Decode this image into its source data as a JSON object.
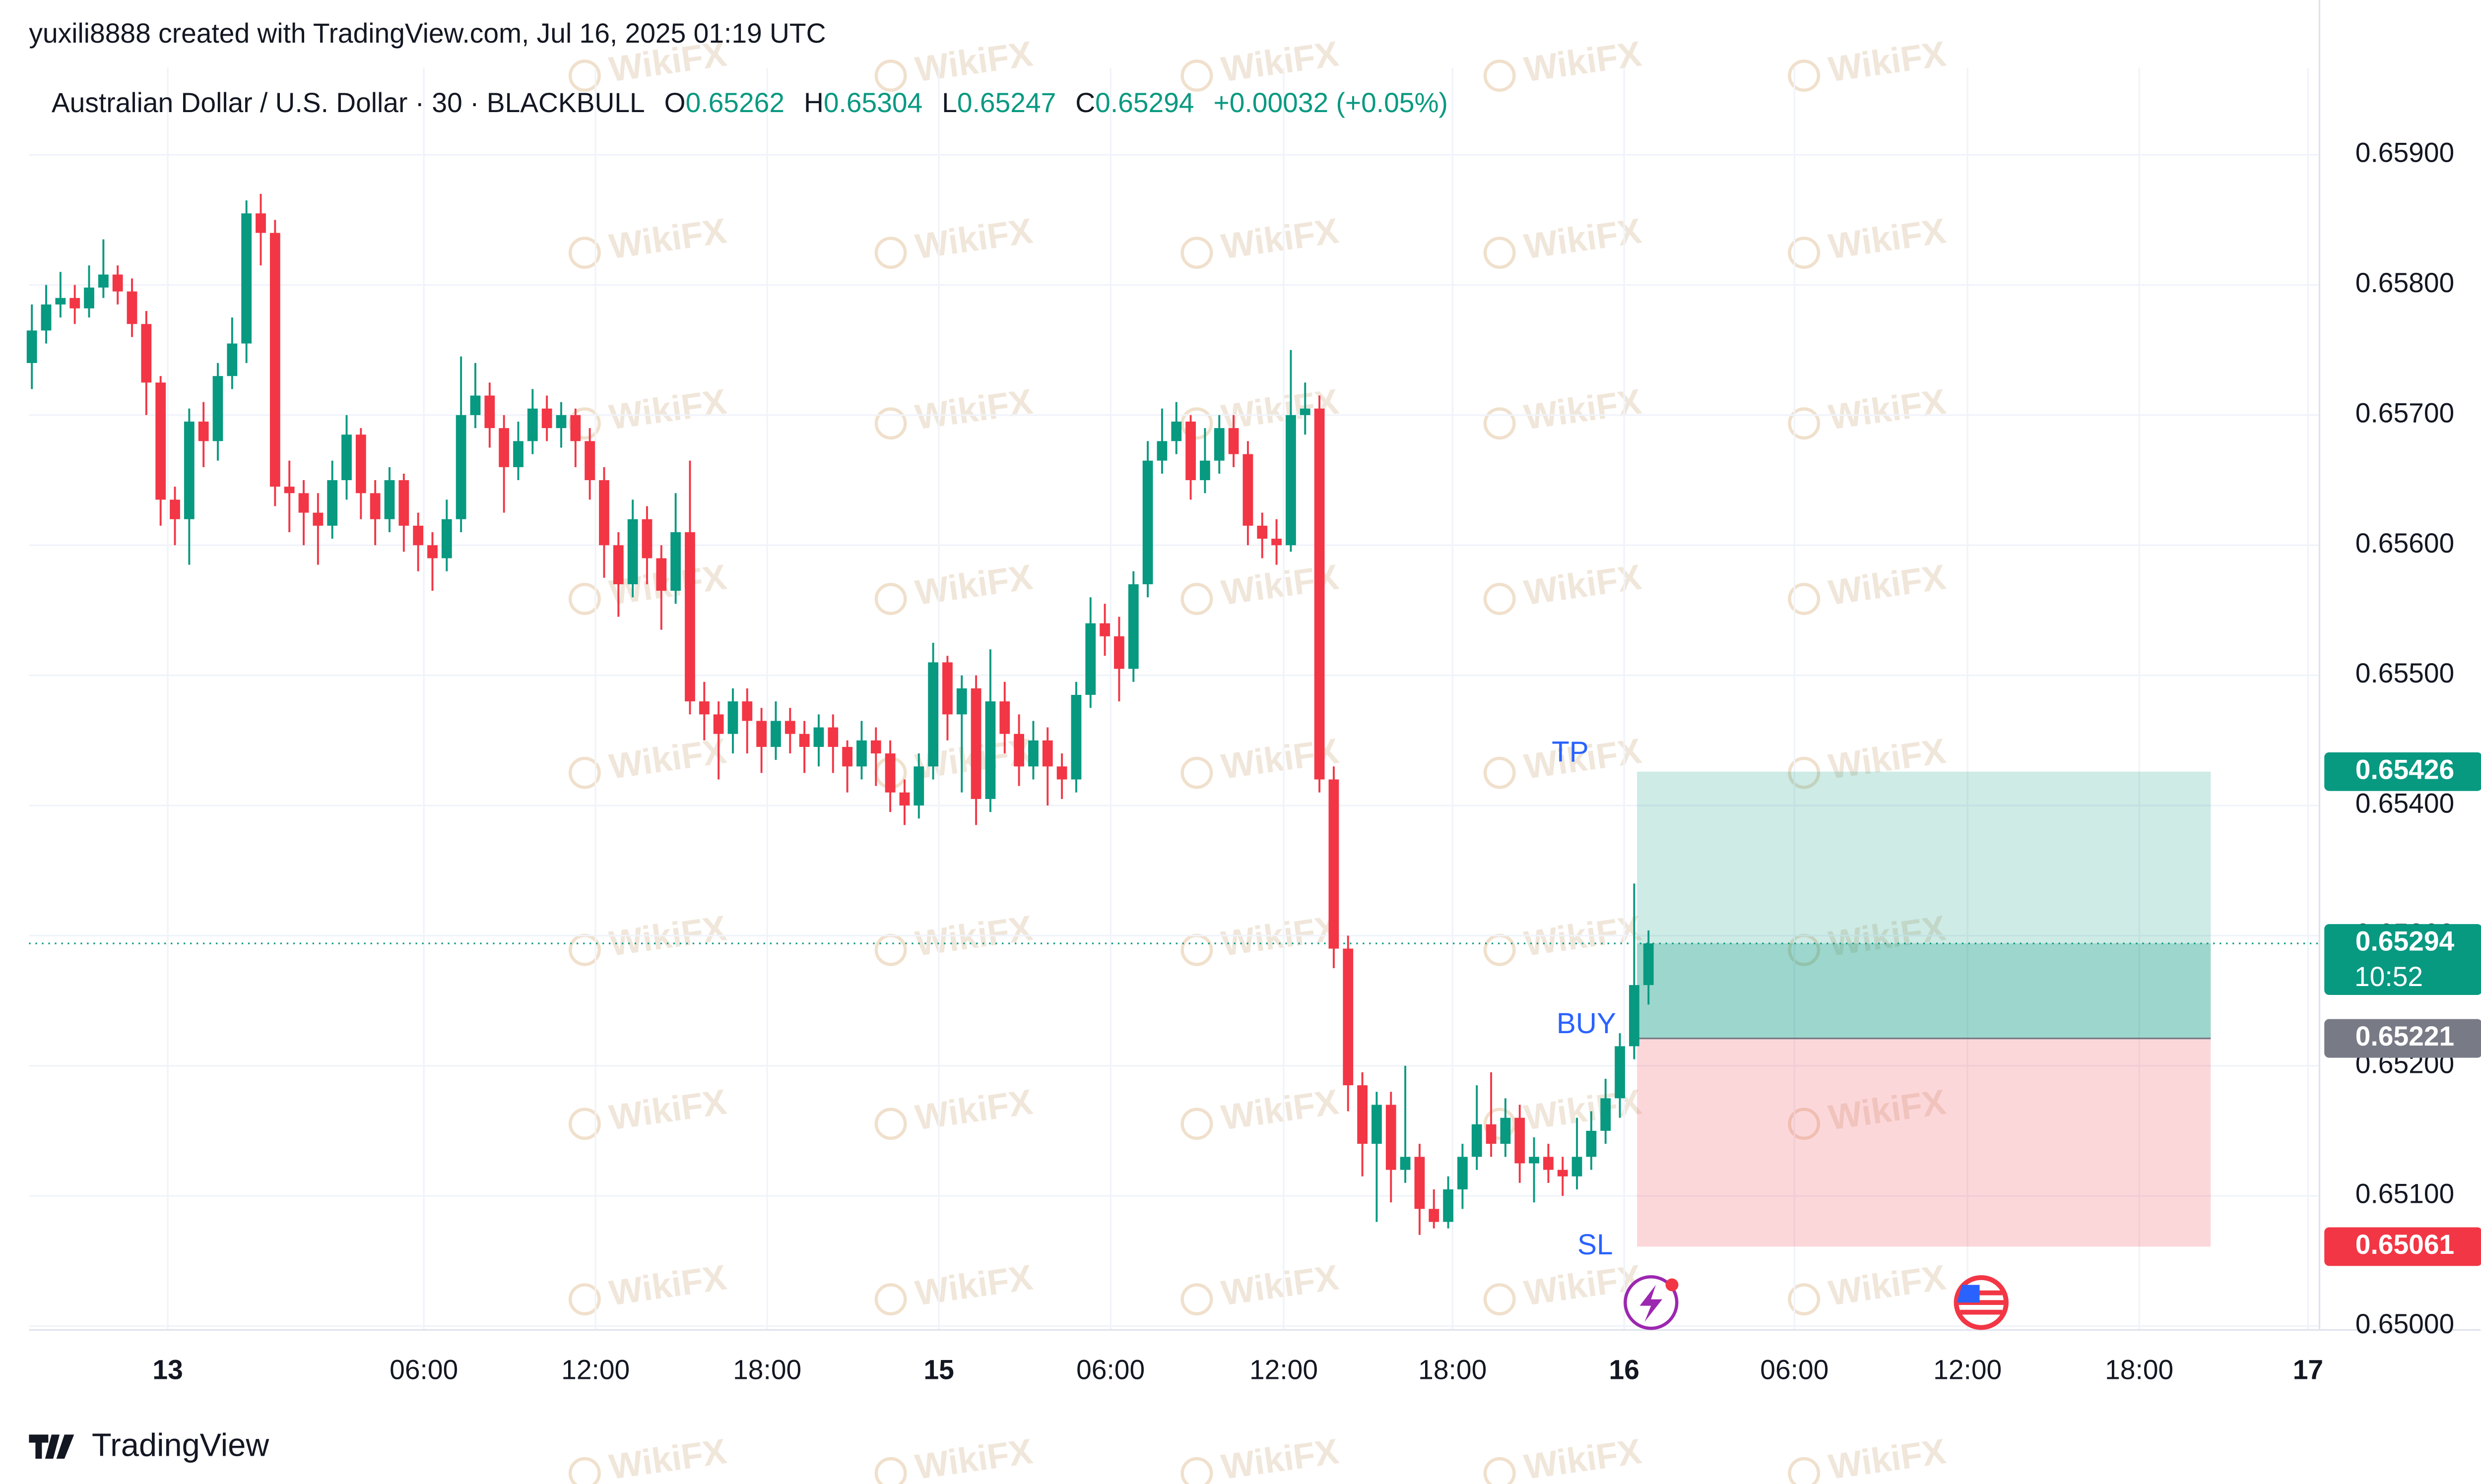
{
  "header": {
    "attribution": "yuxili8888 created with TradingView.com, Jul 16, 2025 01:19 UTC",
    "footer_brand": "TradingView",
    "watermark": "WikiFX"
  },
  "chart_data": {
    "type": "candlestick",
    "title": "Australian Dollar / U.S. Dollar · 30 · BLACKBULL",
    "legend_letters": [
      "O",
      "H",
      "L",
      "C"
    ],
    "legend_values": [
      0.65262,
      0.65304,
      0.65247,
      0.65294
    ],
    "change": "+0.00032 (+0.05%)",
    "up_color": "#089981",
    "down_color": "#f23645",
    "grid": true,
    "open": [
      0.6574,
      0.65765,
      0.65785,
      0.6579,
      0.65782,
      0.65798,
      0.65808,
      0.65795,
      0.6577,
      0.65725,
      0.65635,
      0.6562,
      0.65695,
      0.6568,
      0.6573,
      0.65755,
      0.65855,
      0.6584,
      0.65645,
      0.6564,
      0.65625,
      0.65615,
      0.6565,
      0.65685,
      0.6564,
      0.6562,
      0.6565,
      0.65615,
      0.656,
      0.6559,
      0.6562,
      0.657,
      0.65715,
      0.6569,
      0.6566,
      0.6568,
      0.65705,
      0.6569,
      0.657,
      0.6568,
      0.6565,
      0.656,
      0.6557,
      0.6562,
      0.6559,
      0.65565,
      0.6561,
      0.6548,
      0.6547,
      0.65455,
      0.6548,
      0.65465,
      0.65445,
      0.65465,
      0.65455,
      0.65445,
      0.6546,
      0.65445,
      0.6543,
      0.6545,
      0.6544,
      0.6541,
      0.654,
      0.6543,
      0.6551,
      0.6547,
      0.6549,
      0.65405,
      0.6548,
      0.65455,
      0.6543,
      0.6545,
      0.6543,
      0.6542,
      0.65485,
      0.6554,
      0.6553,
      0.65505,
      0.6557,
      0.65665,
      0.6568,
      0.65695,
      0.6565,
      0.65665,
      0.6569,
      0.6567,
      0.65615,
      0.65605,
      0.656,
      0.657,
      0.65705,
      0.6542,
      0.6529,
      0.65185,
      0.6514,
      0.6517,
      0.6512,
      0.6513,
      0.6509,
      0.6508,
      0.65105,
      0.6513,
      0.65155,
      0.6514,
      0.6516,
      0.65125,
      0.6513,
      0.6512,
      0.65115,
      0.6513,
      0.6515,
      0.65175,
      0.65215,
      0.65262
    ],
    "high": [
      0.65785,
      0.658,
      0.6581,
      0.658,
      0.65815,
      0.65835,
      0.65815,
      0.65805,
      0.6578,
      0.6573,
      0.65645,
      0.65705,
      0.6571,
      0.6574,
      0.65775,
      0.65865,
      0.6587,
      0.6585,
      0.65665,
      0.6565,
      0.6564,
      0.65665,
      0.657,
      0.6569,
      0.6565,
      0.6566,
      0.65655,
      0.65625,
      0.6561,
      0.65635,
      0.65745,
      0.6574,
      0.65725,
      0.657,
      0.65695,
      0.6572,
      0.65715,
      0.6571,
      0.65705,
      0.6569,
      0.6566,
      0.6561,
      0.65635,
      0.6563,
      0.656,
      0.6564,
      0.65665,
      0.65495,
      0.6548,
      0.6549,
      0.6549,
      0.65475,
      0.6548,
      0.65475,
      0.65465,
      0.6547,
      0.6547,
      0.6545,
      0.65465,
      0.6546,
      0.6545,
      0.6542,
      0.6544,
      0.65525,
      0.65515,
      0.655,
      0.655,
      0.6552,
      0.65495,
      0.6547,
      0.65465,
      0.6546,
      0.6544,
      0.65495,
      0.6556,
      0.65555,
      0.65545,
      0.6558,
      0.6568,
      0.65705,
      0.6571,
      0.657,
      0.6569,
      0.657,
      0.657,
      0.6568,
      0.65625,
      0.6562,
      0.6575,
      0.65725,
      0.65715,
      0.6543,
      0.653,
      0.65195,
      0.6518,
      0.6518,
      0.652,
      0.6514,
      0.65105,
      0.65115,
      0.6514,
      0.65185,
      0.65195,
      0.65175,
      0.6517,
      0.65145,
      0.6514,
      0.6513,
      0.6516,
      0.65165,
      0.6519,
      0.65225,
      0.6534,
      0.65304
    ],
    "low": [
      0.6572,
      0.65755,
      0.65775,
      0.6577,
      0.65775,
      0.6579,
      0.65785,
      0.6576,
      0.657,
      0.65615,
      0.656,
      0.65585,
      0.6566,
      0.65665,
      0.6572,
      0.6574,
      0.65815,
      0.6563,
      0.6561,
      0.656,
      0.65585,
      0.65605,
      0.65635,
      0.6562,
      0.656,
      0.6561,
      0.65595,
      0.6558,
      0.65565,
      0.6558,
      0.6561,
      0.6569,
      0.65675,
      0.65625,
      0.6565,
      0.6567,
      0.6568,
      0.65675,
      0.6566,
      0.65635,
      0.65575,
      0.65545,
      0.6556,
      0.6557,
      0.65535,
      0.65555,
      0.6547,
      0.6545,
      0.6542,
      0.6544,
      0.6544,
      0.65425,
      0.65435,
      0.6544,
      0.65425,
      0.6543,
      0.65425,
      0.6541,
      0.6542,
      0.65415,
      0.65395,
      0.65385,
      0.6539,
      0.6542,
      0.6545,
      0.6541,
      0.65385,
      0.65395,
      0.6544,
      0.65415,
      0.6542,
      0.654,
      0.65405,
      0.6541,
      0.65475,
      0.65515,
      0.6548,
      0.65495,
      0.6556,
      0.65655,
      0.6567,
      0.65635,
      0.6564,
      0.65655,
      0.6566,
      0.656,
      0.6559,
      0.65585,
      0.65595,
      0.65685,
      0.6541,
      0.65275,
      0.65165,
      0.65115,
      0.6508,
      0.65095,
      0.6511,
      0.6507,
      0.65075,
      0.65075,
      0.6509,
      0.6512,
      0.6513,
      0.6513,
      0.6511,
      0.65095,
      0.6511,
      0.651,
      0.65105,
      0.6512,
      0.6514,
      0.6516,
      0.65205,
      0.65247
    ],
    "close": [
      0.65765,
      0.65785,
      0.6579,
      0.65782,
      0.65798,
      0.65808,
      0.65795,
      0.6577,
      0.65725,
      0.65635,
      0.6562,
      0.65695,
      0.6568,
      0.6573,
      0.65755,
      0.65855,
      0.6584,
      0.65645,
      0.6564,
      0.65625,
      0.65615,
      0.6565,
      0.65685,
      0.6564,
      0.6562,
      0.6565,
      0.65615,
      0.656,
      0.6559,
      0.6562,
      0.657,
      0.65715,
      0.6569,
      0.6566,
      0.6568,
      0.65705,
      0.6569,
      0.657,
      0.6568,
      0.6565,
      0.656,
      0.6557,
      0.6562,
      0.6559,
      0.65565,
      0.6561,
      0.6548,
      0.6547,
      0.65455,
      0.6548,
      0.65465,
      0.65445,
      0.65465,
      0.65455,
      0.65445,
      0.6546,
      0.65445,
      0.6543,
      0.6545,
      0.6544,
      0.6541,
      0.654,
      0.6543,
      0.6551,
      0.6547,
      0.6549,
      0.65405,
      0.6548,
      0.65455,
      0.6543,
      0.6545,
      0.6543,
      0.6542,
      0.65485,
      0.6554,
      0.6553,
      0.65505,
      0.6557,
      0.65665,
      0.6568,
      0.65695,
      0.6565,
      0.65665,
      0.6569,
      0.6567,
      0.65615,
      0.65605,
      0.656,
      0.657,
      0.65705,
      0.6542,
      0.6529,
      0.65185,
      0.6514,
      0.6517,
      0.6512,
      0.6513,
      0.6509,
      0.6508,
      0.65105,
      0.6513,
      0.65155,
      0.6514,
      0.6516,
      0.65125,
      0.6513,
      0.6512,
      0.65115,
      0.6513,
      0.6515,
      0.65175,
      0.65215,
      0.65262,
      0.65294
    ],
    "xlim": [
      -0.2,
      159.9
    ],
    "xticks": [
      {
        "value": 9.5,
        "label": "13"
      },
      {
        "value": 27.4,
        "label": "06:00"
      },
      {
        "value": 39.4,
        "label": "12:00"
      },
      {
        "value": 51.4,
        "label": "18:00"
      },
      {
        "value": 63.4,
        "label": "15"
      },
      {
        "value": 75.4,
        "label": "06:00"
      },
      {
        "value": 87.5,
        "label": "12:00"
      },
      {
        "value": 99.3,
        "label": "18:00"
      },
      {
        "value": 111.3,
        "label": "16"
      },
      {
        "value": 123.2,
        "label": "06:00"
      },
      {
        "value": 135.3,
        "label": "12:00"
      },
      {
        "value": 147.3,
        "label": "18:00"
      },
      {
        "value": 159.1,
        "label": "17"
      }
    ],
    "day_ticks": [
      0,
      4,
      8,
      12
    ],
    "ylim": [
      0.64997,
      0.65967
    ],
    "yticks": [
      {
        "value": 0.65,
        "label": "0.65000"
      },
      {
        "value": 0.651,
        "label": "0.65100"
      },
      {
        "value": 0.652,
        "label": "0.65200"
      },
      {
        "value": 0.653,
        "label": "0.65300"
      },
      {
        "value": 0.654,
        "label": "0.65400"
      },
      {
        "value": 0.655,
        "label": "0.65500"
      },
      {
        "value": 0.656,
        "label": "0.65600"
      },
      {
        "value": 0.657,
        "label": "0.65700"
      },
      {
        "value": 0.658,
        "label": "0.65800"
      },
      {
        "value": 0.659,
        "label": "0.65900"
      }
    ],
    "last_price": 0.65294,
    "countdown": "10:52",
    "position": {
      "start": 112.2,
      "end": 152.3,
      "entry": 0.65221,
      "take_profit": 0.65426,
      "stop_loss": 0.65061,
      "entry_label": "BUY",
      "take_profit_label": "TP",
      "stop_loss_label": "SL",
      "profit_color": "#089981",
      "loss_color": "#f23645",
      "entry_color": "#787b86"
    }
  }
}
